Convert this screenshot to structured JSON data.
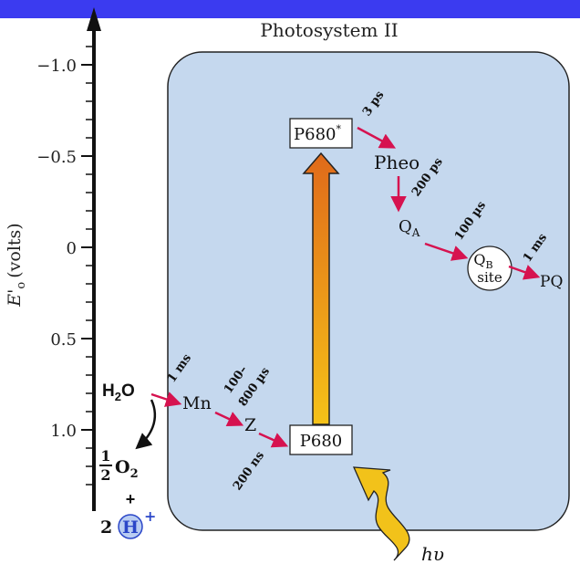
{
  "title": "Photosystem II",
  "axis": {
    "label_main": "E'",
    "label_sub": "o",
    "label_unit": "(volts)",
    "ticks": [
      {
        "value": -1.0,
        "label": "−1.0"
      },
      {
        "value": -0.5,
        "label": "−0.5"
      },
      {
        "value": 0,
        "label": "0"
      },
      {
        "value": 0.5,
        "label": "0.5"
      },
      {
        "value": 1.0,
        "label": "1.0"
      }
    ]
  },
  "nodes": {
    "p680_star": {
      "label": "P680",
      "sup": "*"
    },
    "pheo": {
      "label": "Pheo"
    },
    "qa": {
      "label": "Q",
      "sub": "A"
    },
    "qb": {
      "label": "Q",
      "sub": "B",
      "line2": "site"
    },
    "pq": {
      "label": "PQ"
    },
    "p680": {
      "label": "P680"
    },
    "z": {
      "label": "Z"
    },
    "mn": {
      "label": "Mn"
    },
    "water": {
      "label": "H",
      "sub": "2",
      "tail": "O"
    },
    "oxygen": {
      "num": "1",
      "den": "2",
      "label": "O",
      "sub": "2"
    },
    "plus": "+",
    "proton": {
      "coef": "2",
      "label": "H",
      "sup": "+"
    },
    "light": {
      "label": "hυ"
    }
  },
  "times": {
    "p680star_to_pheo": "3 ps",
    "pheo_to_qa": "200 ps",
    "qa_to_qb": "100 µs",
    "qb_to_pq": "1 ms",
    "water_to_mn": "1 ms",
    "mn_to_z_1": "100–",
    "mn_to_z_2": "800 µs",
    "z_to_p680": "200 ns"
  },
  "colors": {
    "header_bar": "#3b3bf0",
    "box_fill": "#c5d8ee",
    "arrow_red": "#d6124f",
    "arrow_gradient_top": "#e06a1a",
    "arrow_gradient_bottom": "#f5c218",
    "wavy_fill": "#f2c21a"
  }
}
